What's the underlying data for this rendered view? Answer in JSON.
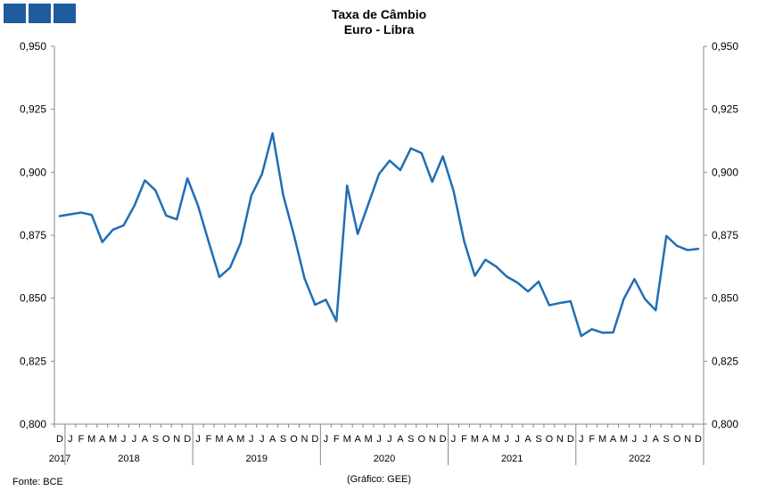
{
  "chart_data": {
    "type": "line",
    "title": "Taxa de Câmbio",
    "subtitle": "Euro - Libra",
    "source": "Fonte: BCE",
    "credit": "(Gráfico: GEE)",
    "ylim": [
      0.8,
      0.95
    ],
    "y_ticks": [
      "0,800",
      "0,825",
      "0,850",
      "0,875",
      "0,900",
      "0,925",
      "0,950"
    ],
    "month_labels": [
      "D",
      "J",
      "F",
      "M",
      "A",
      "M",
      "J",
      "J",
      "A",
      "S",
      "O",
      "N",
      "D",
      "J",
      "F",
      "M",
      "A",
      "M",
      "J",
      "J",
      "A",
      "S",
      "O",
      "N",
      "D",
      "J",
      "F",
      "M",
      "A",
      "M",
      "J",
      "J",
      "A",
      "S",
      "O",
      "N",
      "D",
      "J",
      "F",
      "M",
      "A",
      "M",
      "J",
      "J",
      "A",
      "S",
      "O",
      "N",
      "D",
      "J",
      "F",
      "M",
      "A",
      "M",
      "J",
      "J",
      "A",
      "S",
      "O",
      "N",
      "D"
    ],
    "year_labels": [
      {
        "label": "2017",
        "start": 0,
        "end": 0
      },
      {
        "label": "2018",
        "start": 1,
        "end": 12
      },
      {
        "label": "2019",
        "start": 13,
        "end": 24
      },
      {
        "label": "2020",
        "start": 25,
        "end": 36
      },
      {
        "label": "2021",
        "start": 37,
        "end": 48
      },
      {
        "label": "2022",
        "start": 49,
        "end": 60
      }
    ],
    "series": [
      {
        "color": "#1f6eb5",
        "values": [
          0.8826,
          0.8833,
          0.884,
          0.8831,
          0.8723,
          0.8772,
          0.8789,
          0.8866,
          0.8968,
          0.8928,
          0.8828,
          0.8813,
          0.8976,
          0.8867,
          0.8723,
          0.8584,
          0.8621,
          0.8719,
          0.8907,
          0.8992,
          0.9155,
          0.8909,
          0.8752,
          0.8579,
          0.8474,
          0.8494,
          0.8409,
          0.8947,
          0.8755,
          0.8874,
          0.8993,
          0.9046,
          0.9009,
          0.9095,
          0.9076,
          0.8962,
          0.9063,
          0.8927,
          0.8726,
          0.8589,
          0.8653,
          0.8626,
          0.8586,
          0.8562,
          0.8527,
          0.8566,
          0.8472,
          0.8481,
          0.8488,
          0.835,
          0.8377,
          0.8363,
          0.8364,
          0.8497,
          0.8576,
          0.8496,
          0.8452,
          0.8747,
          0.8708,
          0.8691,
          0.8696
        ]
      }
    ]
  }
}
